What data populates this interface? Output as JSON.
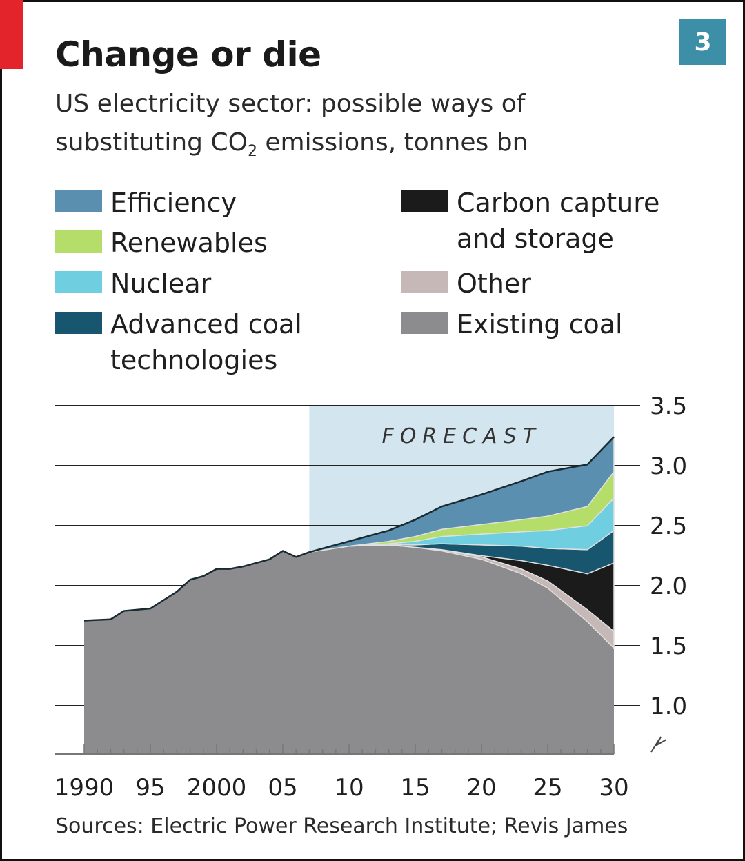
{
  "title": "Change or die",
  "chart_number": "3",
  "subtitle_line1": "US electricity sector: possible ways of",
  "subtitle_line2_pre": "substituting CO",
  "subtitle_line2_sub": "2",
  "subtitle_line2_post": " emissions, tonnes bn",
  "source": "Sources: Electric Power Research Institute; Revis James",
  "colors": {
    "brand_red": "#e3242b",
    "number_box": "#3c8fa6",
    "forecast_band": "#d3e6ef",
    "efficiency": "#5b8fb0",
    "renewables": "#b5dd6a",
    "nuclear": "#6fcfe0",
    "advanced_coal": "#17566e",
    "ccs": "#1b1b1b",
    "other": "#c7b8b8",
    "existing_coal": "#8c8c8f",
    "outline": "#e0e0e0",
    "top_line": "#1a2a33",
    "gridline": "#222222",
    "axis_line": "#777777"
  },
  "legend": [
    {
      "key": "efficiency",
      "label": "Efficiency"
    },
    {
      "key": "renewables",
      "label": "Renewables"
    },
    {
      "key": "nuclear",
      "label": "Nuclear"
    },
    {
      "key": "advanced_coal",
      "label": "Advanced coal technologies"
    },
    {
      "key": "ccs",
      "label": "Carbon capture and storage"
    },
    {
      "key": "other",
      "label": "Other"
    },
    {
      "key": "existing_coal",
      "label": "Existing coal"
    }
  ],
  "chart_data": {
    "type": "area",
    "xlabel": "",
    "ylabel": "",
    "ylim": [
      0.6,
      3.5
    ],
    "y_axis_broken": true,
    "y_ticks": [
      1.0,
      1.5,
      2.0,
      2.5,
      3.0,
      3.5
    ],
    "y_tick_labels": [
      "1.0",
      "1.5",
      "2.0",
      "2.5",
      "3.0",
      "3.5"
    ],
    "x_ticks": [
      1990,
      1995,
      2000,
      2005,
      2010,
      2015,
      2020,
      2025,
      2030
    ],
    "x_tick_labels": [
      "1990",
      "95",
      "2000",
      "05",
      "10",
      "15",
      "20",
      "25",
      "30"
    ],
    "xlim": [
      1990,
      2030
    ],
    "gridlines": true,
    "forecast": {
      "label": "FORECAST",
      "start": 2007
    },
    "history": {
      "x": [
        1990,
        1992,
        1993,
        1995,
        1996,
        1997,
        1998,
        1999,
        2000,
        2001,
        2002,
        2003,
        2004,
        2005,
        2006,
        2007
      ],
      "y": [
        1.71,
        1.72,
        1.79,
        1.81,
        1.88,
        1.95,
        2.05,
        2.08,
        2.14,
        2.14,
        2.16,
        2.19,
        2.22,
        2.29,
        2.24,
        2.28
      ]
    },
    "x": [
      2007,
      2010,
      2013,
      2015,
      2017,
      2020,
      2023,
      2025,
      2028,
      2030
    ],
    "series": [
      {
        "name": "Existing coal",
        "key": "existing_coal",
        "values": [
          2.28,
          2.33,
          2.34,
          2.32,
          2.29,
          2.22,
          2.1,
          1.98,
          1.7,
          1.48
        ]
      },
      {
        "name": "Other",
        "key": "other",
        "values": [
          0,
          0,
          0,
          0,
          0.01,
          0.02,
          0.04,
          0.06,
          0.1,
          0.14
        ]
      },
      {
        "name": "Carbon capture and storage",
        "key": "ccs",
        "values": [
          0,
          0,
          0,
          0,
          0,
          0.01,
          0.07,
          0.13,
          0.3,
          0.57
        ]
      },
      {
        "name": "Advanced coal technologies",
        "key": "advanced_coal",
        "values": [
          0,
          0,
          0,
          0.02,
          0.05,
          0.09,
          0.12,
          0.14,
          0.2,
          0.27
        ]
      },
      {
        "name": "Nuclear",
        "key": "nuclear",
        "values": [
          0,
          0,
          0.01,
          0.03,
          0.06,
          0.09,
          0.12,
          0.15,
          0.2,
          0.27
        ]
      },
      {
        "name": "Renewables",
        "key": "renewables",
        "values": [
          0,
          0,
          0.02,
          0.04,
          0.06,
          0.08,
          0.1,
          0.12,
          0.16,
          0.22
        ]
      },
      {
        "name": "Efficiency",
        "key": "efficiency",
        "values": [
          0,
          0.04,
          0.09,
          0.14,
          0.19,
          0.25,
          0.32,
          0.37,
          0.35,
          0.29
        ]
      }
    ]
  }
}
